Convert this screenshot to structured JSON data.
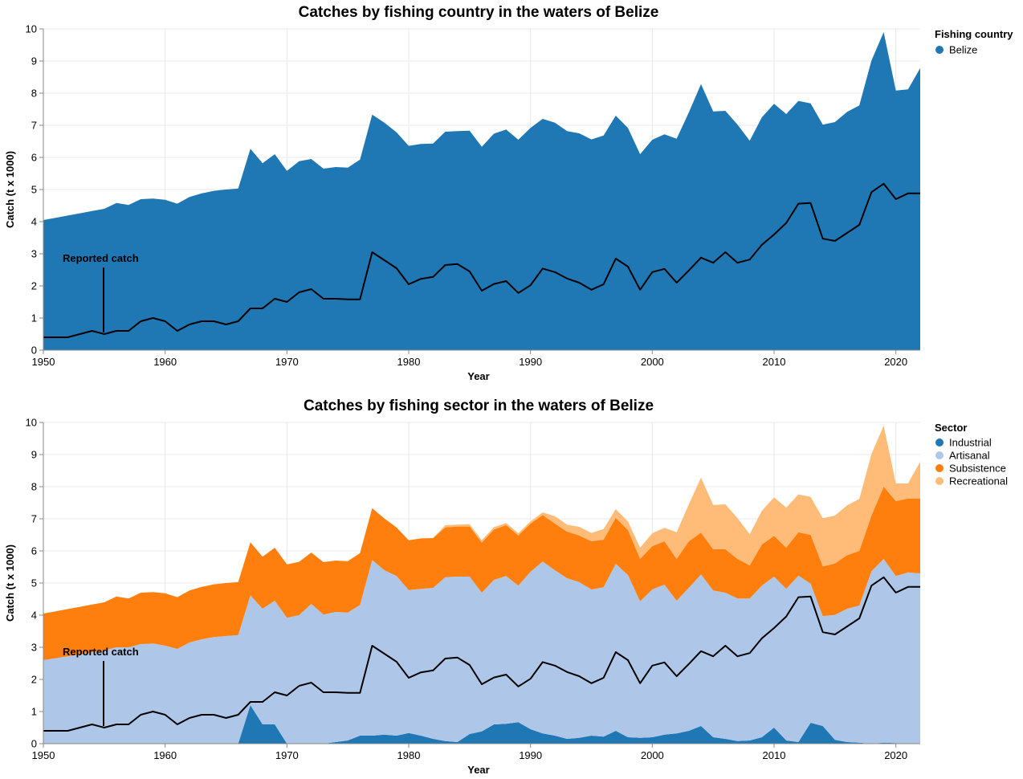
{
  "chart_data": [
    {
      "type": "area",
      "title": "Catches by fishing country in the waters of Belize",
      "xlabel": "Year",
      "ylabel": "Catch (t x 1000)",
      "xlim": [
        1950,
        2022
      ],
      "ylim": [
        0,
        10
      ],
      "x_ticks": [
        1950,
        1960,
        1970,
        1980,
        1990,
        2000,
        2010,
        2020
      ],
      "y_ticks": [
        0,
        1,
        2,
        3,
        4,
        5,
        6,
        7,
        8,
        9,
        10
      ],
      "grid": true,
      "stacked": true,
      "legend": {
        "title": "Fishing country",
        "position": "top-right"
      },
      "series": [
        {
          "name": "Belize",
          "color": "#1f77b4",
          "x": [
            1950,
            1955,
            1956,
            1957,
            1958,
            1959,
            1960,
            1961,
            1962,
            1963,
            1964,
            1965,
            1966,
            1967,
            1968,
            1969,
            1970,
            1971,
            1972,
            1973,
            1974,
            1975,
            1976,
            1977,
            1978,
            1979,
            1980,
            1981,
            1982,
            1983,
            1984,
            1985,
            1986,
            1987,
            1988,
            1989,
            1990,
            1991,
            1992,
            1993,
            1994,
            1995,
            1996,
            1997,
            1998,
            1999,
            2000,
            2001,
            2002,
            2003,
            2004,
            2005,
            2006,
            2007,
            2008,
            2009,
            2010,
            2011,
            2012,
            2013,
            2014,
            2015,
            2016,
            2017,
            2018,
            2019,
            2020,
            2021,
            2022
          ],
          "values": [
            4.05,
            4.4,
            4.58,
            4.52,
            4.7,
            4.72,
            4.68,
            4.56,
            4.77,
            4.88,
            4.96,
            5.0,
            5.03,
            6.27,
            5.82,
            6.1,
            5.58,
            5.88,
            5.95,
            5.65,
            5.7,
            5.68,
            5.93,
            7.33,
            7.08,
            6.78,
            6.36,
            6.42,
            6.43,
            6.8,
            6.82,
            6.83,
            6.33,
            6.74,
            6.87,
            6.55,
            6.92,
            7.2,
            7.08,
            6.82,
            6.75,
            6.56,
            6.68,
            7.3,
            6.92,
            6.1,
            6.55,
            6.72,
            6.58,
            7.4,
            8.28,
            7.43,
            7.45,
            7.02,
            6.52,
            7.25,
            7.67,
            7.35,
            7.76,
            7.68,
            7.02,
            7.1,
            7.42,
            7.62,
            9.02,
            9.9,
            8.08,
            8.12,
            8.78
          ]
        }
      ],
      "reported_catch": {
        "label": "Reported catch",
        "x": [
          1950,
          1951,
          1952,
          1953,
          1954,
          1955,
          1956,
          1957,
          1958,
          1959,
          1960,
          1961,
          1962,
          1963,
          1964,
          1965,
          1966,
          1967,
          1968,
          1969,
          1970,
          1971,
          1972,
          1973,
          1974,
          1975,
          1976,
          1977,
          1978,
          1979,
          1980,
          1981,
          1982,
          1983,
          1984,
          1985,
          1986,
          1987,
          1988,
          1989,
          1990,
          1991,
          1992,
          1993,
          1994,
          1995,
          1996,
          1997,
          1998,
          1999,
          2000,
          2001,
          2002,
          2003,
          2004,
          2005,
          2006,
          2007,
          2008,
          2009,
          2010,
          2011,
          2012,
          2013,
          2014,
          2015,
          2016,
          2017,
          2018,
          2019,
          2020,
          2021,
          2022
        ],
        "values": [
          0.4,
          0.4,
          0.4,
          0.5,
          0.6,
          0.5,
          0.6,
          0.6,
          0.9,
          1.0,
          0.9,
          0.6,
          0.8,
          0.9,
          0.9,
          0.8,
          0.9,
          1.3,
          1.3,
          1.6,
          1.5,
          1.8,
          1.9,
          1.6,
          1.6,
          1.58,
          1.58,
          3.05,
          2.8,
          2.55,
          2.05,
          2.22,
          2.28,
          2.65,
          2.68,
          2.45,
          1.85,
          2.06,
          2.15,
          1.78,
          2.02,
          2.54,
          2.43,
          2.23,
          2.1,
          1.88,
          2.05,
          2.85,
          2.6,
          1.88,
          2.43,
          2.53,
          2.1,
          2.48,
          2.88,
          2.72,
          3.05,
          2.72,
          2.82,
          3.28,
          3.6,
          3.96,
          4.56,
          4.58,
          3.47,
          3.4,
          3.65,
          3.9,
          4.92,
          5.18,
          4.7,
          4.88,
          4.88
        ]
      }
    },
    {
      "type": "area",
      "title": "Catches by fishing sector in the waters of Belize",
      "xlabel": "Year",
      "ylabel": "Catch (t x 1000)",
      "xlim": [
        1950,
        2022
      ],
      "ylim": [
        0,
        10
      ],
      "x_ticks": [
        1950,
        1960,
        1970,
        1980,
        1990,
        2000,
        2010,
        2020
      ],
      "y_ticks": [
        0,
        1,
        2,
        3,
        4,
        5,
        6,
        7,
        8,
        9,
        10
      ],
      "grid": true,
      "stacked": true,
      "legend": {
        "title": "Sector",
        "position": "top-right"
      },
      "series": [
        {
          "name": "Industrial",
          "color": "#1f77b4",
          "x": [
            1950,
            1966,
            1967,
            1968,
            1969,
            1970,
            1972,
            1973,
            1974,
            1975,
            1976,
            1977,
            1978,
            1979,
            1980,
            1981,
            1982,
            1983,
            1984,
            1985,
            1986,
            1987,
            1988,
            1989,
            1990,
            1991,
            1992,
            1993,
            1994,
            1995,
            1996,
            1997,
            1998,
            1999,
            2000,
            2001,
            2002,
            2003,
            2004,
            2005,
            2006,
            2007,
            2008,
            2009,
            2010,
            2011,
            2012,
            2013,
            2014,
            2015,
            2016,
            2017,
            2018,
            2019,
            2020,
            2021,
            2022
          ],
          "values": [
            0,
            0,
            1.2,
            0.6,
            0.6,
            0,
            0,
            0,
            0.05,
            0.1,
            0.25,
            0.25,
            0.28,
            0.25,
            0.33,
            0.25,
            0.15,
            0.08,
            0.05,
            0.3,
            0.38,
            0.6,
            0.62,
            0.67,
            0.45,
            0.32,
            0.25,
            0.15,
            0.18,
            0.25,
            0.22,
            0.4,
            0.2,
            0.18,
            0.2,
            0.28,
            0.32,
            0.4,
            0.55,
            0.2,
            0.15,
            0.08,
            0.1,
            0.2,
            0.5,
            0.1,
            0.05,
            0.65,
            0.55,
            0.12,
            0.05,
            0.03,
            0,
            0.03,
            0.02,
            0,
            0
          ]
        },
        {
          "name": "Artisanal",
          "color": "#aec7e8",
          "x": [
            1950,
            1955,
            1956,
            1957,
            1958,
            1959,
            1960,
            1961,
            1962,
            1963,
            1964,
            1965,
            1966,
            1967,
            1968,
            1969,
            1970,
            1971,
            1972,
            1973,
            1974,
            1975,
            1976,
            1977,
            1978,
            1979,
            1980,
            1981,
            1982,
            1983,
            1984,
            1985,
            1986,
            1987,
            1988,
            1989,
            1990,
            1991,
            1992,
            1993,
            1994,
            1995,
            1996,
            1997,
            1998,
            1999,
            2000,
            2001,
            2002,
            2003,
            2004,
            2005,
            2006,
            2007,
            2008,
            2009,
            2010,
            2011,
            2012,
            2013,
            2014,
            2015,
            2016,
            2017,
            2018,
            2019,
            2020,
            2021,
            2022
          ],
          "values": [
            2.6,
            2.9,
            3.0,
            3.0,
            3.1,
            3.12,
            3.05,
            2.95,
            3.15,
            3.25,
            3.32,
            3.35,
            3.38,
            3.42,
            3.6,
            3.85,
            3.92,
            4.0,
            4.35,
            4.02,
            4.05,
            3.98,
            4.07,
            5.47,
            5.12,
            4.97,
            4.45,
            4.57,
            4.7,
            5.1,
            5.15,
            4.9,
            4.32,
            4.5,
            4.6,
            4.25,
            4.9,
            5.35,
            5.15,
            5.0,
            4.85,
            4.55,
            4.65,
            5.2,
            5.05,
            4.25,
            4.6,
            4.67,
            4.13,
            4.45,
            4.72,
            4.57,
            4.55,
            4.44,
            4.42,
            4.72,
            4.7,
            4.72,
            5.18,
            4.33,
            3.42,
            3.89,
            4.15,
            4.27,
            5.37,
            5.72,
            5.2,
            5.33,
            5.3
          ]
        },
        {
          "name": "Subsistence",
          "color": "#ff7f0e",
          "x": [
            1950,
            1955,
            1956,
            1957,
            1958,
            1959,
            1960,
            1961,
            1962,
            1963,
            1964,
            1965,
            1966,
            1967,
            1968,
            1969,
            1970,
            1971,
            1972,
            1973,
            1974,
            1975,
            1976,
            1977,
            1978,
            1979,
            1980,
            1981,
            1982,
            1983,
            1984,
            1985,
            1986,
            1987,
            1988,
            1989,
            1990,
            1991,
            1992,
            1993,
            1994,
            1995,
            1996,
            1997,
            1998,
            1999,
            2000,
            2001,
            2002,
            2003,
            2004,
            2005,
            2006,
            2007,
            2008,
            2009,
            2010,
            2011,
            2012,
            2013,
            2014,
            2015,
            2016,
            2017,
            2018,
            2019,
            2020,
            2021,
            2022
          ],
          "values": [
            1.45,
            1.5,
            1.58,
            1.52,
            1.6,
            1.6,
            1.63,
            1.61,
            1.62,
            1.63,
            1.64,
            1.65,
            1.65,
            1.65,
            1.62,
            1.65,
            1.66,
            1.66,
            1.6,
            1.63,
            1.6,
            1.6,
            1.61,
            1.61,
            1.61,
            1.51,
            1.55,
            1.57,
            1.55,
            1.55,
            1.56,
            1.56,
            1.56,
            1.57,
            1.58,
            1.56,
            1.5,
            1.45,
            1.45,
            1.45,
            1.45,
            1.5,
            1.48,
            1.43,
            1.4,
            1.32,
            1.35,
            1.35,
            1.3,
            1.45,
            1.3,
            1.28,
            1.35,
            1.23,
            1.03,
            1.28,
            1.27,
            1.28,
            1.35,
            1.52,
            1.55,
            1.6,
            1.67,
            1.7,
            1.73,
            2.25,
            2.33,
            2.3,
            2.33
          ]
        },
        {
          "name": "Recreational",
          "color": "#ffbb78",
          "x": [
            1950,
            1982,
            1983,
            1984,
            1985,
            1986,
            1987,
            1988,
            1989,
            1990,
            1991,
            1992,
            1993,
            1994,
            1995,
            1996,
            1997,
            1998,
            1999,
            2000,
            2001,
            2002,
            2003,
            2004,
            2005,
            2006,
            2007,
            2008,
            2009,
            2010,
            2011,
            2012,
            2013,
            2014,
            2015,
            2016,
            2017,
            2018,
            2019,
            2020,
            2021,
            2022
          ],
          "values": [
            0,
            0,
            0.07,
            0.06,
            0.07,
            0.07,
            0.07,
            0.07,
            0.07,
            0.07,
            0.08,
            0.23,
            0.22,
            0.27,
            0.26,
            0.33,
            0.27,
            0.27,
            0.35,
            0.4,
            0.42,
            0.83,
            1.15,
            1.71,
            1.38,
            1.4,
            1.27,
            0.97,
            1.05,
            1.2,
            1.25,
            1.18,
            1.18,
            1.5,
            1.49,
            1.55,
            1.62,
            1.92,
            1.9,
            0.55,
            0.47,
            1.15
          ]
        }
      ],
      "reported_catch": {
        "label": "Reported catch",
        "x": [
          1950,
          1951,
          1952,
          1953,
          1954,
          1955,
          1956,
          1957,
          1958,
          1959,
          1960,
          1961,
          1962,
          1963,
          1964,
          1965,
          1966,
          1967,
          1968,
          1969,
          1970,
          1971,
          1972,
          1973,
          1974,
          1975,
          1976,
          1977,
          1978,
          1979,
          1980,
          1981,
          1982,
          1983,
          1984,
          1985,
          1986,
          1987,
          1988,
          1989,
          1990,
          1991,
          1992,
          1993,
          1994,
          1995,
          1996,
          1997,
          1998,
          1999,
          2000,
          2001,
          2002,
          2003,
          2004,
          2005,
          2006,
          2007,
          2008,
          2009,
          2010,
          2011,
          2012,
          2013,
          2014,
          2015,
          2016,
          2017,
          2018,
          2019,
          2020,
          2021,
          2022
        ],
        "values": [
          0.4,
          0.4,
          0.4,
          0.5,
          0.6,
          0.5,
          0.6,
          0.6,
          0.9,
          1.0,
          0.9,
          0.6,
          0.8,
          0.9,
          0.9,
          0.8,
          0.9,
          1.3,
          1.3,
          1.6,
          1.5,
          1.8,
          1.9,
          1.6,
          1.6,
          1.58,
          1.58,
          3.05,
          2.8,
          2.55,
          2.05,
          2.22,
          2.28,
          2.65,
          2.68,
          2.45,
          1.85,
          2.06,
          2.15,
          1.78,
          2.02,
          2.54,
          2.43,
          2.23,
          2.1,
          1.88,
          2.05,
          2.85,
          2.6,
          1.88,
          2.43,
          2.53,
          2.1,
          2.48,
          2.88,
          2.72,
          3.05,
          2.72,
          2.82,
          3.28,
          3.6,
          3.96,
          4.56,
          4.58,
          3.47,
          3.4,
          3.65,
          3.9,
          4.92,
          5.18,
          4.7,
          4.88,
          4.88
        ]
      }
    }
  ]
}
